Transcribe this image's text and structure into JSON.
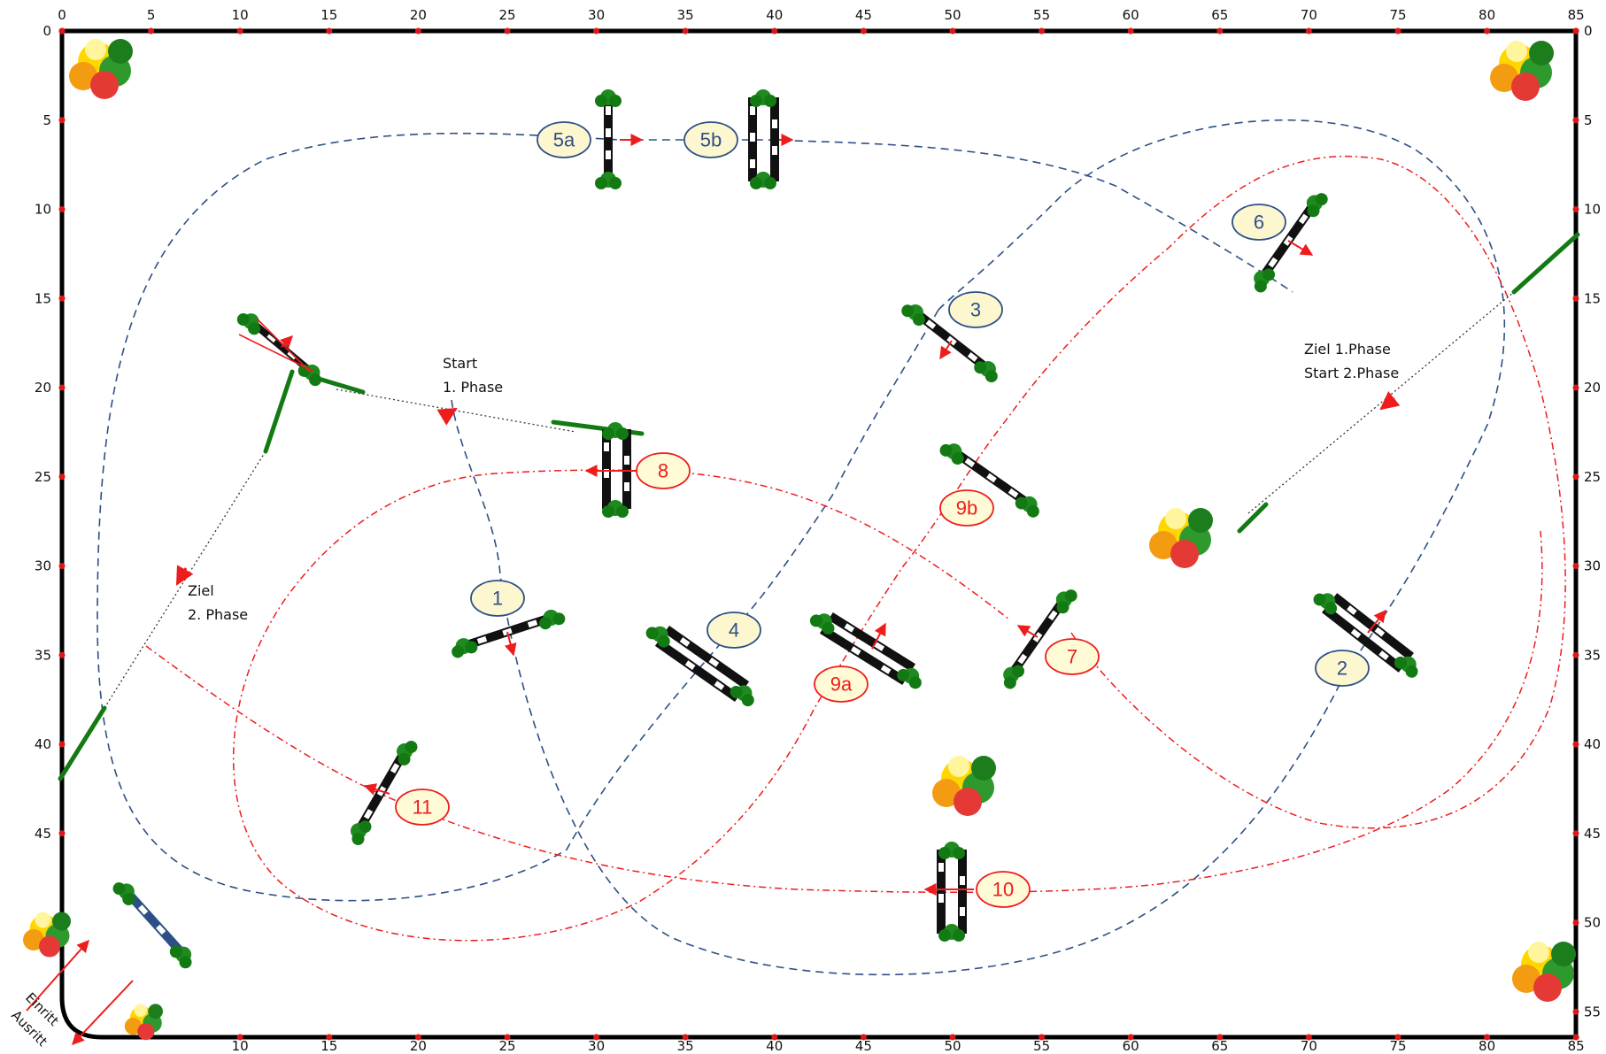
{
  "axes": {
    "top_ticks": [
      "0",
      "5",
      "10",
      "15",
      "20",
      "25",
      "30",
      "35",
      "40",
      "45",
      "50",
      "55",
      "60",
      "65",
      "70",
      "75",
      "80",
      "85"
    ],
    "bottom_ticks": [
      "10",
      "15",
      "20",
      "25",
      "30",
      "35",
      "40",
      "45",
      "50",
      "55",
      "60",
      "65",
      "70",
      "75",
      "80",
      "85"
    ],
    "left_ticks": [
      "0",
      "5",
      "10",
      "15",
      "20",
      "25",
      "30",
      "35",
      "40",
      "45"
    ],
    "right_ticks": [
      "0",
      "5",
      "10",
      "15",
      "20",
      "25",
      "30",
      "35",
      "40",
      "45",
      "50",
      "55"
    ]
  },
  "annotations": {
    "start_phase1_line1": "Start",
    "start_phase1_line2": "1. Phase",
    "ziel_phase1": "Ziel   1.Phase",
    "start_phase2": "Start 2.Phase",
    "ziel_phase2_line1": "Ziel",
    "ziel_phase2_line2": "2. Phase",
    "einritt": "Einritt",
    "ausritt": "Ausritt"
  },
  "obstacles_phase1": [
    "1",
    "2",
    "3",
    "4",
    "5a",
    "5b",
    "6"
  ],
  "obstacles_phase2": [
    "7",
    "8",
    "9a",
    "9b",
    "10",
    "11"
  ],
  "colors": {
    "phase1_route": "#2e4f86",
    "phase1_label_fill": "#fdf7cf",
    "phase2_route": "#ee1c1c",
    "phase2_label_fill": "#fffbd6",
    "arena_border": "#000000",
    "pole_dark": "#111111",
    "standard_green": "#137a13"
  }
}
